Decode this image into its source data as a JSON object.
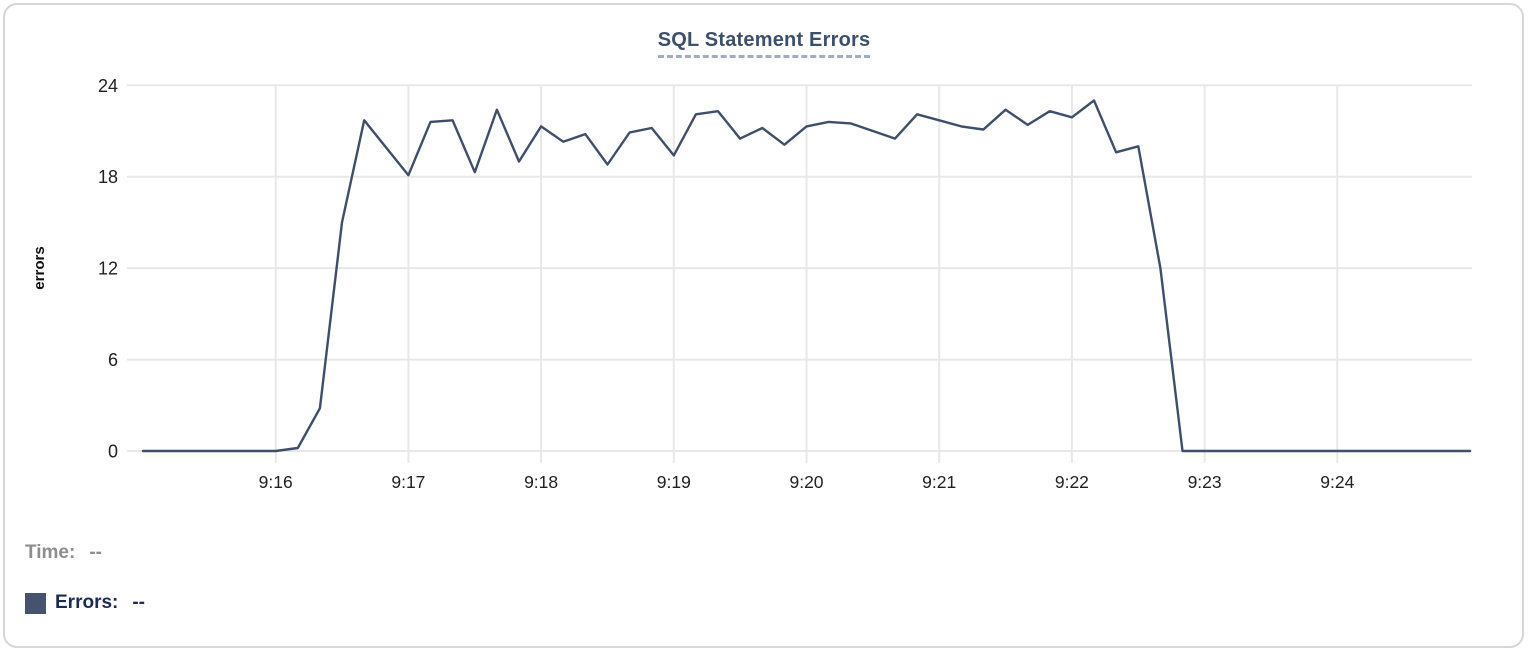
{
  "title": "SQL Statement Errors",
  "readout": {
    "time_label": "Time:",
    "time_value": "--",
    "errors_label": "Errors:",
    "errors_value": "--"
  },
  "colors": {
    "line": "#3f4e6b",
    "legend_swatch": "#45536e",
    "title_text": "#3d4f6e",
    "title_underline": "#9fadc6",
    "muted_text": "#8e8e8e",
    "dark_navy_text": "#1b2b55",
    "grid": "#e8e8e8",
    "tick_text": "#212121",
    "axis_label_text": "#111111"
  },
  "chart_data": {
    "type": "line",
    "title": "SQL Statement Errors",
    "xlabel": "",
    "ylabel": "errors",
    "ylim": [
      0,
      24
    ],
    "yticks": [
      0,
      6,
      12,
      18,
      24
    ],
    "xticks": [
      "9:16",
      "9:17",
      "9:18",
      "9:19",
      "9:20",
      "9:21",
      "9:22",
      "9:23",
      "9:24"
    ],
    "x_range": [
      "9:15:00",
      "9:25:00"
    ],
    "grid": true,
    "legend_position": "bottom-left",
    "series": [
      {
        "name": "Errors",
        "color": "#3f4e6b",
        "points": [
          [
            "9:15:00",
            0
          ],
          [
            "9:15:10",
            0
          ],
          [
            "9:15:20",
            0
          ],
          [
            "9:15:30",
            0
          ],
          [
            "9:15:40",
            0
          ],
          [
            "9:15:50",
            0
          ],
          [
            "9:16:00",
            0
          ],
          [
            "9:16:10",
            0.2
          ],
          [
            "9:16:20",
            2.8
          ],
          [
            "9:16:30",
            15
          ],
          [
            "9:16:40",
            21.7
          ],
          [
            "9:16:50",
            19.9
          ],
          [
            "9:17:00",
            18.1
          ],
          [
            "9:17:10",
            21.6
          ],
          [
            "9:17:20",
            21.7
          ],
          [
            "9:17:30",
            18.3
          ],
          [
            "9:17:40",
            22.4
          ],
          [
            "9:17:50",
            19
          ],
          [
            "9:18:00",
            21.3
          ],
          [
            "9:18:10",
            20.3
          ],
          [
            "9:18:20",
            20.8
          ],
          [
            "9:18:30",
            18.8
          ],
          [
            "9:18:40",
            20.9
          ],
          [
            "9:18:50",
            21.2
          ],
          [
            "9:19:00",
            19.4
          ],
          [
            "9:19:10",
            22.1
          ],
          [
            "9:19:20",
            22.3
          ],
          [
            "9:19:30",
            20.5
          ],
          [
            "9:19:40",
            21.2
          ],
          [
            "9:19:50",
            20.1
          ],
          [
            "9:20:00",
            21.3
          ],
          [
            "9:20:10",
            21.6
          ],
          [
            "9:20:20",
            21.5
          ],
          [
            "9:20:30",
            21
          ],
          [
            "9:20:40",
            20.5
          ],
          [
            "9:20:50",
            22.1
          ],
          [
            "9:21:00",
            21.7
          ],
          [
            "9:21:10",
            21.3
          ],
          [
            "9:21:20",
            21.1
          ],
          [
            "9:21:30",
            22.4
          ],
          [
            "9:21:40",
            21.4
          ],
          [
            "9:21:50",
            22.3
          ],
          [
            "9:22:00",
            21.9
          ],
          [
            "9:22:10",
            23
          ],
          [
            "9:22:20",
            19.6
          ],
          [
            "9:22:30",
            20
          ],
          [
            "9:22:40",
            12
          ],
          [
            "9:22:50",
            0
          ],
          [
            "9:23:00",
            0
          ],
          [
            "9:23:10",
            0
          ],
          [
            "9:23:20",
            0
          ],
          [
            "9:23:30",
            0
          ],
          [
            "9:23:40",
            0
          ],
          [
            "9:23:50",
            0
          ],
          [
            "9:24:00",
            0
          ],
          [
            "9:24:10",
            0
          ],
          [
            "9:24:20",
            0
          ],
          [
            "9:24:30",
            0
          ],
          [
            "9:24:40",
            0
          ],
          [
            "9:24:50",
            0
          ],
          [
            "9:25:00",
            0
          ]
        ]
      }
    ]
  }
}
